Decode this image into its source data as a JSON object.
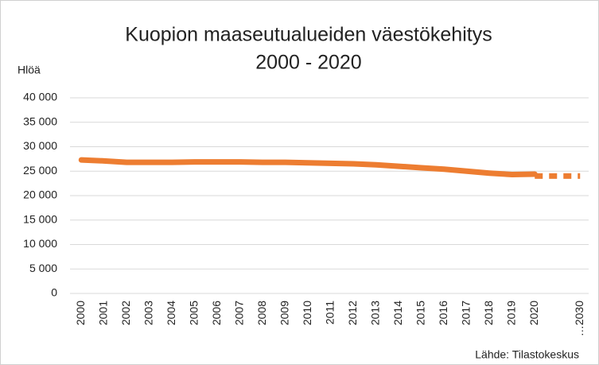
{
  "chart_data": {
    "type": "line",
    "title": [
      "Kuopion maaseutualueiden väestökehitys",
      "2000 - 2020"
    ],
    "y_label": "Hlöä",
    "source": "Lähde: Tilastokeskus",
    "categories": [
      "2000",
      "2001",
      "2002",
      "2003",
      "2004",
      "2005",
      "2006",
      "2007",
      "2008",
      "2009",
      "2010",
      "2011",
      "2012",
      "2013",
      "2014",
      "2015",
      "2016",
      "2017",
      "2018",
      "2019",
      "2020",
      null,
      "…2030"
    ],
    "series": [
      {
        "color": "#ed7d31",
        "style": "solid",
        "values": [
          27300,
          27100,
          26800,
          26800,
          26800,
          26900,
          26900,
          26900,
          26800,
          26800,
          26700,
          26600,
          26500,
          26300,
          26000,
          25700,
          25400,
          25000,
          24600,
          24300,
          24400,
          null,
          null
        ]
      },
      {
        "color": "#ed7d31",
        "style": "dashed",
        "values": [
          null,
          null,
          null,
          null,
          null,
          null,
          null,
          null,
          null,
          null,
          null,
          null,
          null,
          null,
          null,
          null,
          null,
          null,
          null,
          null,
          24000,
          24000,
          24000
        ]
      }
    ],
    "ylim": [
      0,
      40000
    ],
    "yticks": [
      0,
      {
        "value": 5000,
        "label": "5 000"
      },
      {
        "value": 10000,
        "label": "10 000"
      },
      {
        "value": 15000,
        "label": "15 000"
      },
      {
        "value": 20000,
        "label": "20 000"
      },
      {
        "value": 25000,
        "label": "25 000"
      },
      {
        "value": 30000,
        "label": "30 000"
      },
      {
        "value": 35000,
        "label": "35 000"
      },
      {
        "value": 40000,
        "label": "40 000"
      }
    ],
    "grid": true
  }
}
